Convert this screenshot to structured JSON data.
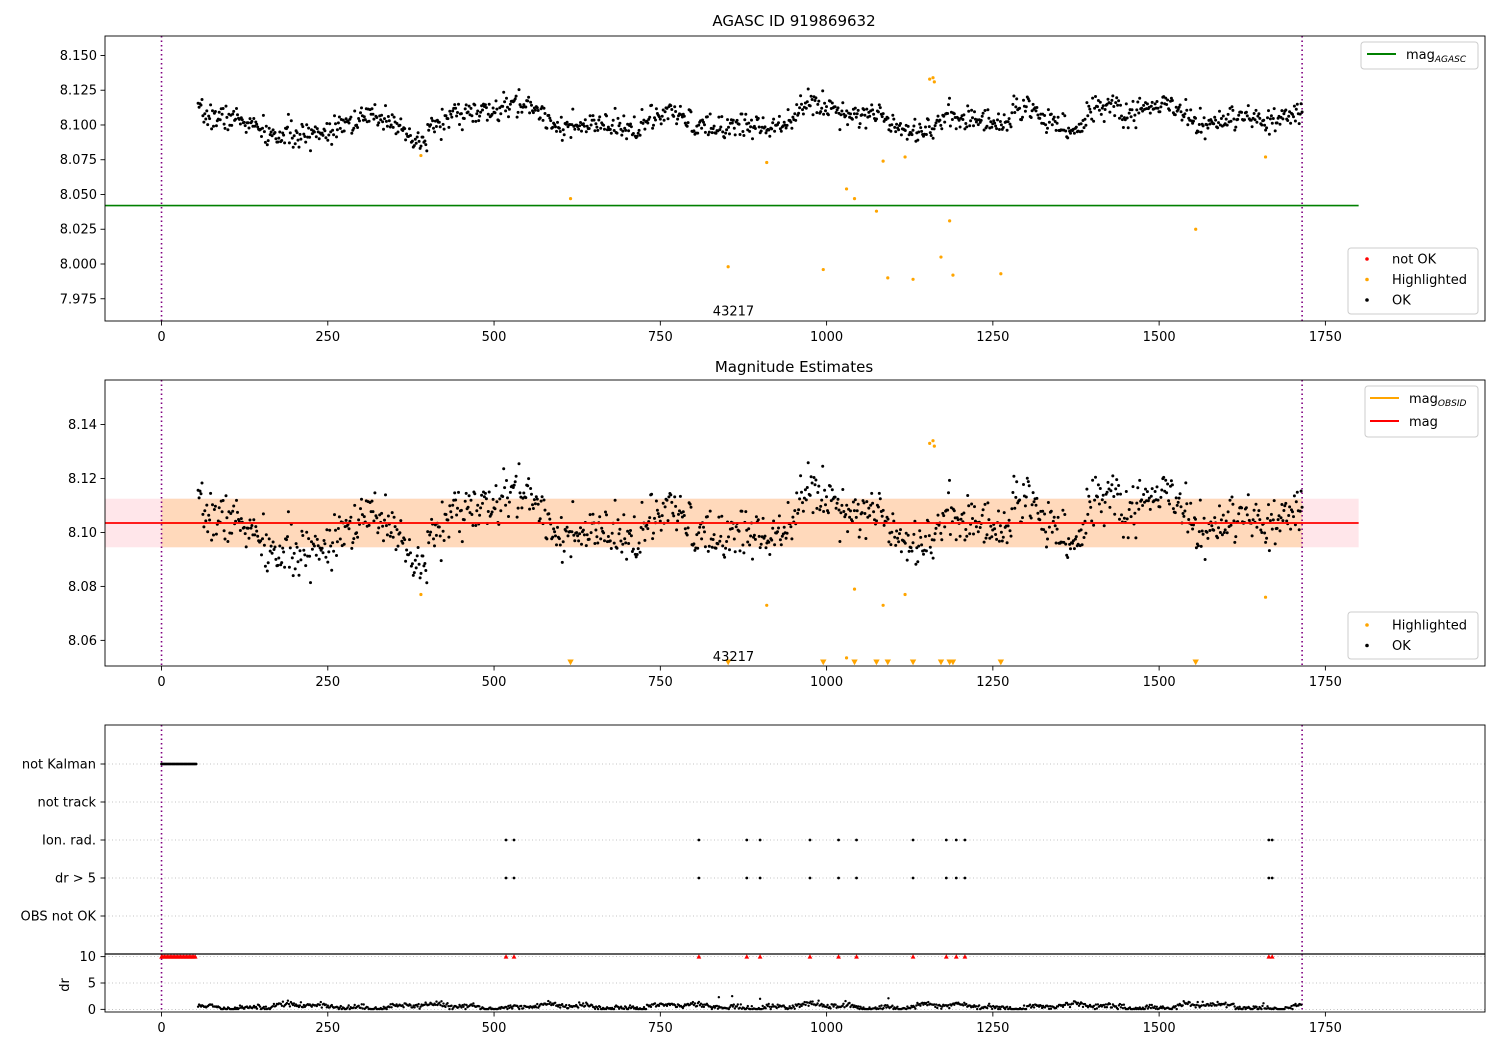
{
  "chart_data": [
    {
      "type": "scatter",
      "title": "AGASC ID 919869632",
      "xlim": [
        -85,
        1990
      ],
      "ylim": [
        7.959,
        8.164
      ],
      "xticks": [
        0,
        250,
        500,
        750,
        1000,
        1250,
        1500,
        1750
      ],
      "yticks": [
        7.975,
        8.0,
        8.025,
        8.05,
        8.075,
        8.1,
        8.125,
        8.15
      ],
      "obsid_label": "43217",
      "obsid_label_pos": [
        860,
        7.966
      ],
      "vlines": [
        0,
        1715
      ],
      "mag_agasc": {
        "name": "mag_AGASC",
        "value": 8.042,
        "x_range": [
          -85,
          1800
        ],
        "color": "#008000"
      },
      "legend_lines": [
        {
          "name": "mag",
          "sub": "AGASC",
          "color": "#008000"
        }
      ],
      "legend_points": [
        {
          "name": "not OK",
          "color": "#ff0000"
        },
        {
          "name": "Highlighted",
          "color": "#ffa500"
        },
        {
          "name": "OK",
          "color": "#000000"
        }
      ],
      "ok_series": {
        "name": "OK",
        "x_start": 55,
        "x_end": 1715,
        "n": 1150,
        "seed": 7
      },
      "highlighted_points": [
        [
          390,
          8.078
        ],
        [
          615,
          8.047
        ],
        [
          852,
          7.998
        ],
        [
          910,
          8.073
        ],
        [
          995,
          7.996
        ],
        [
          1030,
          8.054
        ],
        [
          1042,
          8.047
        ],
        [
          1075,
          8.038
        ],
        [
          1085,
          8.074
        ],
        [
          1092,
          7.99
        ],
        [
          1118,
          8.077
        ],
        [
          1130,
          7.989
        ],
        [
          1155,
          8.133
        ],
        [
          1160,
          8.134
        ],
        [
          1162,
          8.131
        ],
        [
          1172,
          8.005
        ],
        [
          1185,
          8.031
        ],
        [
          1190,
          7.992
        ],
        [
          1262,
          7.993
        ],
        [
          1555,
          8.025
        ],
        [
          1660,
          8.077
        ]
      ],
      "grid": false
    },
    {
      "type": "scatter",
      "title": "Magnitude Estimates",
      "xlim": [
        -85,
        1990
      ],
      "ylim": [
        8.0505,
        8.1565
      ],
      "xticks": [
        0,
        250,
        500,
        750,
        1000,
        1250,
        1500,
        1750
      ],
      "yticks": [
        8.06,
        8.08,
        8.1,
        8.12,
        8.14
      ],
      "obsid_label": "43217",
      "obsid_label_pos": [
        860,
        8.0535
      ],
      "vlines": [
        0,
        1715
      ],
      "mag_line": {
        "name": "mag",
        "value": 8.1035,
        "x_range": [
          -85,
          1800
        ],
        "color": "#ff0000"
      },
      "mag_band": {
        "low": 8.0945,
        "high": 8.1125,
        "x_range": [
          -85,
          1800
        ]
      },
      "mag_obsid": {
        "name": "mag_OBSID",
        "value": 8.1035,
        "low": 8.0945,
        "high": 8.1125,
        "x_range": [
          0,
          1715
        ],
        "color": "#ffa500"
      },
      "legend_lines": [
        {
          "name": "mag",
          "sub": "OBSID",
          "color": "#ffa500"
        },
        {
          "name": "mag",
          "sub": "",
          "color": "#ff0000"
        }
      ],
      "legend_points": [
        {
          "name": "Highlighted",
          "color": "#ffa500"
        },
        {
          "name": "OK",
          "color": "#000000"
        }
      ],
      "highlighted_points": [
        [
          390,
          8.077
        ],
        [
          910,
          8.073
        ],
        [
          1030,
          8.0535
        ],
        [
          1042,
          8.079
        ],
        [
          1085,
          8.073
        ],
        [
          1118,
          8.077
        ],
        [
          1155,
          8.133
        ],
        [
          1160,
          8.134
        ],
        [
          1162,
          8.132
        ],
        [
          1660,
          8.076
        ]
      ],
      "low_markers_x": [
        615,
        852,
        995,
        1042,
        1075,
        1092,
        1130,
        1172,
        1185,
        1190,
        1262,
        1555
      ],
      "grid": false
    },
    {
      "type": "scatter",
      "title": "",
      "xlim": [
        -85,
        1990
      ],
      "xticks": [
        0,
        250,
        500,
        750,
        1000,
        1250,
        1500,
        1750
      ],
      "vlines": [
        0,
        1715
      ],
      "flag_rows": [
        "not Kalman",
        "not track",
        "Ion. rad.",
        "dr > 5",
        "OBS not OK"
      ],
      "flags": {
        "not Kalman": {
          "x_start": 0,
          "x_end": 52,
          "step": 2
        },
        "not track": [],
        "Ion. rad.": [
          518,
          530,
          808,
          880,
          900,
          975,
          1018,
          1045,
          1130,
          1180,
          1195,
          1208,
          1665,
          1670
        ],
        "dr > 5": [
          518,
          530,
          808,
          880,
          900,
          975,
          1018,
          1045,
          1130,
          1180,
          1195,
          1208,
          1665,
          1670
        ],
        "OBS not OK": []
      },
      "dr": {
        "ylabel": "dr",
        "ylim": [
          -0.5,
          10.5
        ],
        "yticks": [
          0,
          5,
          10
        ],
        "cap": 10,
        "capped_x_start": 0,
        "capped_x_end": 52,
        "capped_extra_x": [
          518,
          530,
          808,
          880,
          900,
          975,
          1018,
          1045,
          1130,
          1180,
          1195,
          1208,
          1665,
          1670
        ],
        "series_x_start": 55,
        "series_x_end": 1715,
        "outliers": [
          [
            838,
            2.3
          ],
          [
            858,
            2.5
          ],
          [
            900,
            2.0
          ],
          [
            1093,
            2.1
          ]
        ]
      },
      "grid": true
    }
  ]
}
